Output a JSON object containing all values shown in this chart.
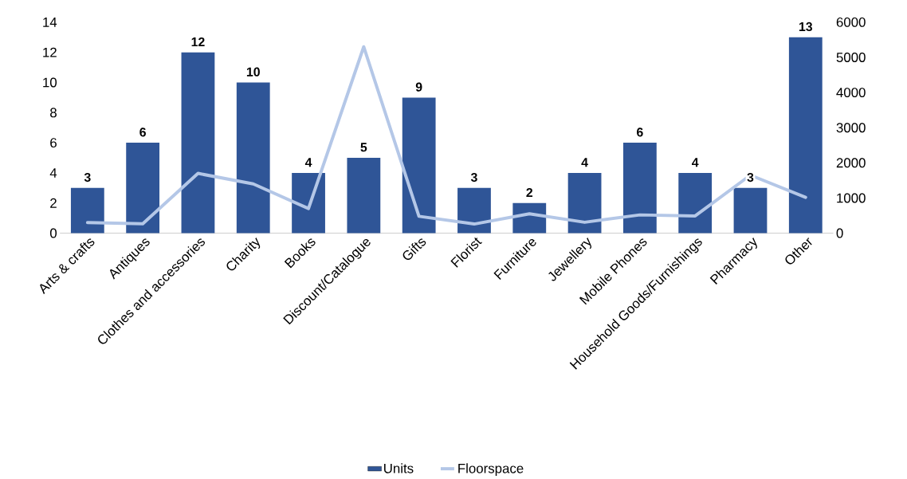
{
  "chart_data": {
    "type": "bar",
    "categories": [
      "Arts & crafts",
      "Antiques",
      "Clothes and accessories",
      "Charity",
      "Books",
      "Discount/Catalogue",
      "Gifts",
      "Florist",
      "Furniture",
      "Jewellery",
      "Mobile Phones",
      "Household Goods/Furnishings",
      "Pharmacy",
      "Other"
    ],
    "series": [
      {
        "name": "Units",
        "color": "#2f5597",
        "values": [
          3,
          6,
          12,
          10,
          4,
          5,
          9,
          3,
          2,
          4,
          6,
          4,
          3,
          13
        ],
        "value_labels": [
          "3",
          "6",
          "12",
          "10",
          "4",
          "5",
          "9",
          "3",
          "2",
          "4",
          "6",
          "4",
          "3",
          "13"
        ]
      },
      {
        "name": "Floorspace",
        "type": "line",
        "axis": "y2",
        "color": "#b4c7e7",
        "values": [
          300,
          270,
          1700,
          1400,
          700,
          5300,
          480,
          260,
          550,
          310,
          520,
          490,
          1650,
          1020
        ]
      }
    ],
    "ylim": [
      0,
      14
    ],
    "yticks": [
      0,
      2,
      4,
      6,
      8,
      10,
      12,
      14
    ],
    "y2lim": [
      0,
      6000
    ],
    "y2ticks": [
      0,
      1000,
      2000,
      3000,
      4000,
      5000,
      6000
    ],
    "legend": "bottom",
    "grid": false
  }
}
